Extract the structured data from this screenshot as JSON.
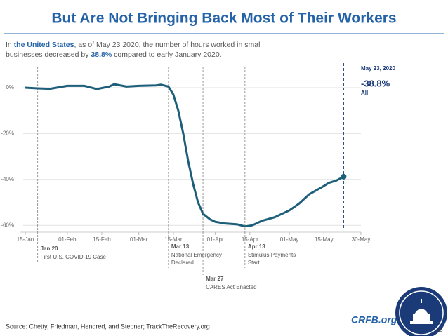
{
  "chart_data": {
    "type": "line",
    "title": "But Are Not Bringing Back Most of Their Workers",
    "subtitle": [
      "In ",
      "the United States",
      ", as of May 23 2020, the number of hours worked in small",
      "businesses decreased by ",
      "38.8%",
      " compared to early January 2020."
    ],
    "xlim": [
      "2020-01-13",
      "2020-05-30"
    ],
    "xticks": [
      {
        "value": "2020-01-15",
        "label": "15-Jan"
      },
      {
        "value": "2020-02-01",
        "label": "01-Feb"
      },
      {
        "value": "2020-02-15",
        "label": "15-Feb"
      },
      {
        "value": "2020-03-01",
        "label": "01-Mar"
      },
      {
        "value": "2020-03-15",
        "label": "15-Mar"
      },
      {
        "value": "2020-04-01",
        "label": "01-Apr"
      },
      {
        "value": "2020-04-15",
        "label": "15-Apr"
      },
      {
        "value": "2020-05-01",
        "label": "01-May"
      },
      {
        "value": "2020-05-15",
        "label": "15-May"
      },
      {
        "value": "2020-05-30",
        "label": "30-May"
      }
    ],
    "ylim": [
      -63,
      9
    ],
    "yticks": [
      {
        "value": 0,
        "label": "0%"
      },
      {
        "value": -20,
        "label": "-20%"
      },
      {
        "value": -40,
        "label": "-40%"
      },
      {
        "value": -60,
        "label": "-60%"
      }
    ],
    "grid": true,
    "x": [
      "2020-01-15",
      "2020-01-20",
      "2020-01-25",
      "2020-02-01",
      "2020-02-08",
      "2020-02-13",
      "2020-02-18",
      "2020-02-20",
      "2020-02-25",
      "2020-03-01",
      "2020-03-08",
      "2020-03-10",
      "2020-03-13",
      "2020-03-15",
      "2020-03-17",
      "2020-03-19",
      "2020-03-21",
      "2020-03-23",
      "2020-03-25",
      "2020-03-27",
      "2020-03-30",
      "2020-04-01",
      "2020-04-05",
      "2020-04-10",
      "2020-04-13",
      "2020-04-16",
      "2020-04-20",
      "2020-04-25",
      "2020-05-01",
      "2020-05-05",
      "2020-05-09",
      "2020-05-14",
      "2020-05-17",
      "2020-05-20",
      "2020-05-23"
    ],
    "series": [
      {
        "name": "All",
        "color": "#1d5f7a",
        "values": [
          0,
          -0.3,
          -0.5,
          0.8,
          0.8,
          -0.6,
          0.5,
          1.5,
          0.5,
          0.8,
          1,
          1.3,
          0.5,
          -3,
          -10,
          -20,
          -32,
          -42,
          -50,
          -55,
          -57.5,
          -58.5,
          -59.2,
          -59.6,
          -60.5,
          -60,
          -58,
          -56.5,
          -53.5,
          -50.5,
          -46.5,
          -43.5,
          -41.5,
          -40.5,
          -38.8
        ],
        "value_labels": {
          "34": "-38.8%"
        }
      }
    ],
    "end_date_label": "May 23, 2020",
    "events": [
      {
        "x": "2020-01-20",
        "title": "Jan 20",
        "text": [
          "First U.S. COVID-19 Case"
        ]
      },
      {
        "x": "2020-03-13",
        "title": "Mar 13",
        "text": [
          "National Emergency",
          "Declared"
        ]
      },
      {
        "x": "2020-03-27",
        "title": "Mar 27",
        "text": [
          "CARES Act Enacted"
        ]
      },
      {
        "x": "2020-04-13",
        "title": "Apr 13",
        "text": [
          "Stimulus Payments",
          "Start"
        ]
      }
    ]
  },
  "footer": {
    "source": "Source: Chetty, Friedman, Hendred, and Stepner; TrackTheRecovery.org",
    "brand": "CRFB.org",
    "page_number": "26"
  }
}
